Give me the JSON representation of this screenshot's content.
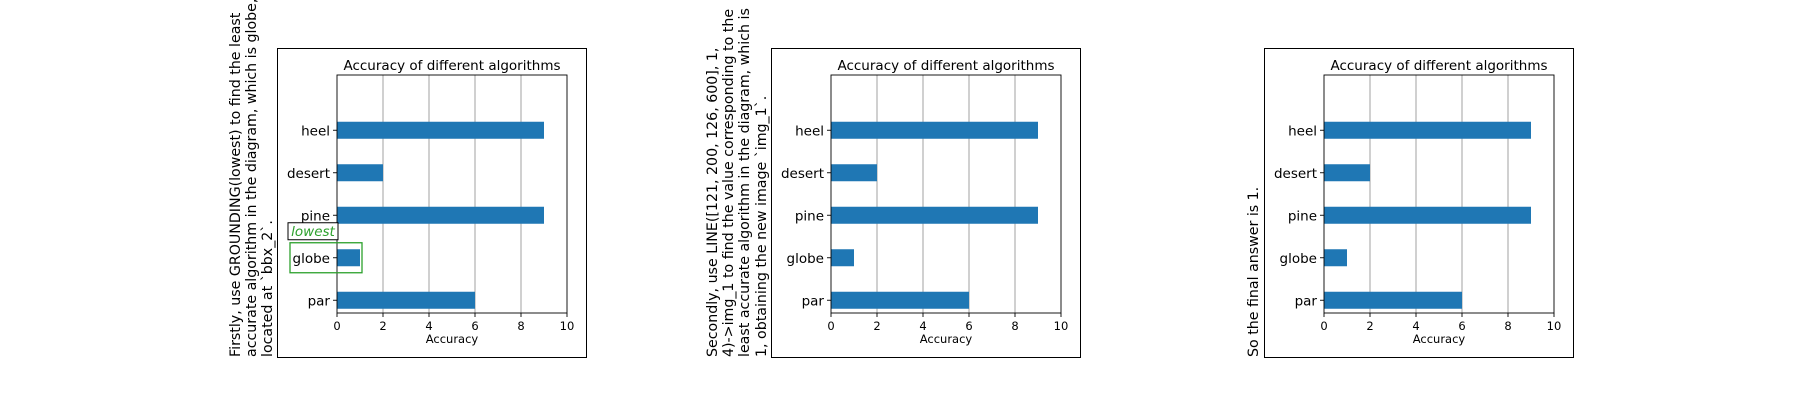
{
  "captions": [
    "Firstly, use GROUNDING(lowest) to find the least\naccurate algorithm in the diagram, which is globe,\nlocated at `bbx_2`.",
    "Secondly, use LINE([121, 200, 126, 600], 1,\n4)->img_1 to find the value corresponding to the\nleast accurate algorithm in the diagram, which is\n1, obtaining the new image `img_1`.",
    "So the final answer is 1."
  ],
  "annotation": {
    "label": "lowest",
    "label_color": "#2ca02c",
    "box_color": "#2ca02c"
  },
  "chart_data": [
    {
      "type": "bar",
      "orientation": "horizontal",
      "title": "Accuracy of different algorithms",
      "xlabel": "Accuracy",
      "ylabel": "",
      "categories": [
        "par",
        "globe",
        "pine",
        "desert",
        "heel"
      ],
      "values": [
        6,
        1,
        9,
        2,
        9
      ],
      "xlim": [
        0,
        10
      ],
      "xticks": [
        "0",
        "2",
        "4",
        "6",
        "8",
        "10"
      ],
      "grid": "x",
      "bar_color": "#1f77b4",
      "annotated_category": "globe"
    },
    {
      "type": "bar",
      "orientation": "horizontal",
      "title": "Accuracy of different algorithms",
      "xlabel": "Accuracy",
      "ylabel": "",
      "categories": [
        "par",
        "globe",
        "pine",
        "desert",
        "heel"
      ],
      "values": [
        6,
        1,
        9,
        2,
        9
      ],
      "xlim": [
        0,
        10
      ],
      "xticks": [
        "0",
        "2",
        "4",
        "6",
        "8",
        "10"
      ],
      "grid": "x",
      "bar_color": "#1f77b4"
    },
    {
      "type": "bar",
      "orientation": "horizontal",
      "title": "Accuracy of different algorithms",
      "xlabel": "Accuracy",
      "ylabel": "",
      "categories": [
        "par",
        "globe",
        "pine",
        "desert",
        "heel"
      ],
      "values": [
        6,
        1,
        9,
        2,
        9
      ],
      "xlim": [
        0,
        10
      ],
      "xticks": [
        "0",
        "2",
        "4",
        "6",
        "8",
        "10"
      ],
      "grid": "x",
      "bar_color": "#1f77b4"
    }
  ]
}
